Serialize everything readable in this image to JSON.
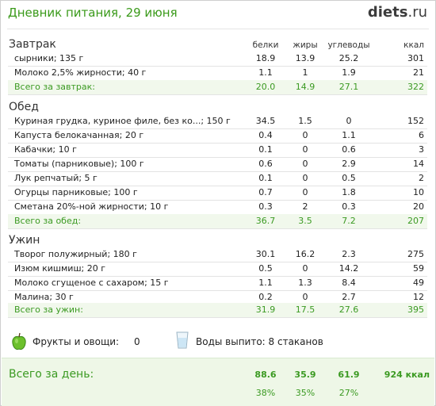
{
  "header": {
    "title": "Дневник питания, 29 июня",
    "logo_main": "diets",
    "logo_tld": ".ru"
  },
  "columns": {
    "protein": "белки",
    "fat": "жиры",
    "carbs": "углеводы",
    "kcal": "ккал"
  },
  "meals": [
    {
      "title": "Завтрак",
      "items": [
        {
          "name": "сырники; 135 г",
          "protein": "18.9",
          "fat": "13.9",
          "carbs": "25.2",
          "kcal": "301"
        },
        {
          "name": "Молоко 2,5% жирности; 40 г",
          "protein": "1.1",
          "fat": "1",
          "carbs": "1.9",
          "kcal": "21"
        }
      ],
      "total": {
        "name": "Всего за завтрак:",
        "protein": "20.0",
        "fat": "14.9",
        "carbs": "27.1",
        "kcal": "322"
      }
    },
    {
      "title": "Обед",
      "items": [
        {
          "name": "Куриная грудка, куриное филе, без ко...; 150 г",
          "protein": "34.5",
          "fat": "1.5",
          "carbs": "0",
          "kcal": "152"
        },
        {
          "name": "Капуста белокачанная; 20 г",
          "protein": "0.4",
          "fat": "0",
          "carbs": "1.1",
          "kcal": "6"
        },
        {
          "name": "Кабачки; 10 г",
          "protein": "0.1",
          "fat": "0",
          "carbs": "0.6",
          "kcal": "3"
        },
        {
          "name": "Томаты (парниковые); 100 г",
          "protein": "0.6",
          "fat": "0",
          "carbs": "2.9",
          "kcal": "14"
        },
        {
          "name": "Лук репчатый; 5 г",
          "protein": "0.1",
          "fat": "0",
          "carbs": "0.5",
          "kcal": "2"
        },
        {
          "name": "Огурцы парниковые; 100 г",
          "protein": "0.7",
          "fat": "0",
          "carbs": "1.8",
          "kcal": "10"
        },
        {
          "name": "Сметана 20%-ной жирности; 10 г",
          "protein": "0.3",
          "fat": "2",
          "carbs": "0.3",
          "kcal": "20"
        }
      ],
      "total": {
        "name": "Всего за обед:",
        "protein": "36.7",
        "fat": "3.5",
        "carbs": "7.2",
        "kcal": "207"
      }
    },
    {
      "title": "Ужин",
      "items": [
        {
          "name": "Творог полужирный; 180 г",
          "protein": "30.1",
          "fat": "16.2",
          "carbs": "2.3",
          "kcal": "275"
        },
        {
          "name": "Изюм кишмиш; 20 г",
          "protein": "0.5",
          "fat": "0",
          "carbs": "14.2",
          "kcal": "59"
        },
        {
          "name": "Молоко сгущеное с сахаром; 15 г",
          "protein": "1.1",
          "fat": "1.3",
          "carbs": "8.4",
          "kcal": "49"
        },
        {
          "name": "Малина; 30 г",
          "protein": "0.2",
          "fat": "0",
          "carbs": "2.7",
          "kcal": "12"
        }
      ],
      "total": {
        "name": "Всего за ужин:",
        "protein": "31.9",
        "fat": "17.5",
        "carbs": "27.6",
        "kcal": "395"
      }
    }
  ],
  "extras": {
    "fruit_label": "Фрукты и овощи:",
    "fruit_value": "0",
    "water_label": "Воды выпито: 8 стаканов",
    "fruit_icon": "green-apple-icon",
    "water_icon": "water-glass-icon"
  },
  "day_total": {
    "label": "Всего за день:",
    "protein": "88.6",
    "fat": "35.9",
    "carbs": "61.9",
    "kcal": "924 ккал",
    "protein_pct": "38%",
    "fat_pct": "35%",
    "carbs_pct": "27%"
  },
  "colors": {
    "accent_green": "#3b9a22",
    "total_bg": "#f1f8ec",
    "title_green": "#3a9a1a"
  }
}
